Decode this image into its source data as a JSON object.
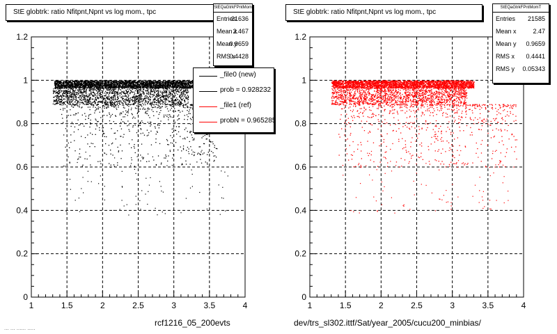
{
  "chart_data": [
    {
      "type": "scatter",
      "title": "StE globtrk: ratio Nfitpnt,Npnt vs log mom., tpc",
      "xlabel": "",
      "ylabel": "",
      "xlim": [
        1,
        4
      ],
      "ylim": [
        0,
        1.2
      ],
      "xticks": [
        "1",
        "1.5",
        "2",
        "2.5",
        "3",
        "3.5",
        "4"
      ],
      "yticks": [
        "0",
        "0.2",
        "0.4",
        "0.6",
        "0.8",
        "1",
        "1.2"
      ],
      "grid": true,
      "marker_color": "#000000",
      "bands": [
        {
          "xmin": 1.32,
          "xmax": 3.3,
          "ymin": 0.965,
          "ymax": 1.0,
          "density": "high"
        },
        {
          "xmin": 1.3,
          "xmax": 3.2,
          "ymin": 0.89,
          "ymax": 0.965,
          "density": "medium"
        },
        {
          "xmin": 1.4,
          "xmax": 3.6,
          "ymin": 0.6,
          "ymax": 0.89,
          "density": "sparse"
        }
      ],
      "stats": {
        "title": "StEQaGtrkFPntMomT",
        "entries_label": "Entries",
        "entries": "21636",
        "meanx_label": "Mean x",
        "meanx": "2.467",
        "meany_label": "Mean y",
        "meany": "0.9659",
        "rmsx_label": "RMS x",
        "rmsx": "0.4428"
      },
      "legend": [
        {
          "label": "_file0 (new)",
          "color": "#000000"
        },
        {
          "label": "prob = 0.928232",
          "color": "#000000"
        },
        {
          "label": "_file1 (ref)",
          "color": "#ff0000"
        },
        {
          "label": "probN = 0.965285",
          "color": "#ff0000"
        }
      ],
      "caption": "rcf1216_05_200evts",
      "footnote": "... ... ...... ....."
    },
    {
      "type": "scatter",
      "title": "StE globtrk: ratio Nfitpnt,Npnt vs log mom., tpc",
      "xlabel": "",
      "ylabel": "",
      "xlim": [
        1,
        4
      ],
      "ylim": [
        0,
        1.2
      ],
      "xticks": [
        "1",
        "1.5",
        "2",
        "2.5",
        "3",
        "3.5",
        "4"
      ],
      "yticks": [
        "0",
        "0.2",
        "0.4",
        "0.6",
        "0.8",
        "1",
        "1.2"
      ],
      "grid": true,
      "marker_color": "#ff0000",
      "bands": [
        {
          "xmin": 1.3,
          "xmax": 3.3,
          "ymin": 0.965,
          "ymax": 1.0,
          "density": "high"
        },
        {
          "xmin": 1.3,
          "xmax": 3.2,
          "ymin": 0.89,
          "ymax": 0.965,
          "density": "medium"
        },
        {
          "xmin": 1.4,
          "xmax": 3.9,
          "ymin": 0.6,
          "ymax": 0.89,
          "density": "sparse"
        }
      ],
      "stats": {
        "title": "StEQaGtrkFPntMomT",
        "entries_label": "Entries",
        "entries": "21585",
        "meanx_label": "Mean x",
        "meanx": "2.47",
        "meany_label": "Mean y",
        "meany": "0.9659",
        "rmsx_label": "RMS x",
        "rmsx": "0.4441",
        "rmsy_label": "RMS y",
        "rmsy": "0.05343"
      },
      "caption": "dev/trs_sl302.ittf/Sat/year_2005/cucu200_minbias/"
    }
  ]
}
